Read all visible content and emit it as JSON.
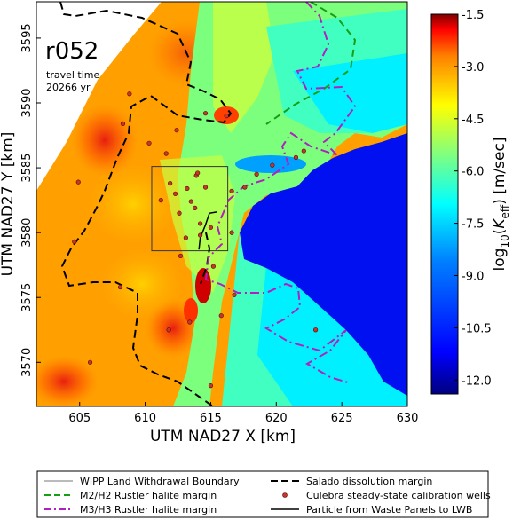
{
  "chart_data": {
    "type": "heatmap",
    "title": "r052",
    "subtitle_line1": "travel time",
    "subtitle_line2": "20266 yr",
    "xlabel": "UTM NAD27 X [km]",
    "ylabel": "UTM NAD27 Y [km]",
    "xlim": [
      601.7,
      630.0
    ],
    "ylim": [
      3566.6,
      3597.8
    ],
    "x_ticks": [
      605,
      610,
      615,
      620,
      625,
      630
    ],
    "y_ticks": [
      3570,
      3575,
      3580,
      3585,
      3590,
      3595
    ],
    "colorbar": {
      "label_prefix": "log",
      "label_sub": "10",
      "label_var": "K",
      "label_var_sub": "eff",
      "label_units": "[m/sec]",
      "range": [
        -12.4,
        -1.5
      ],
      "ticks": [
        "-1.5",
        "-3.0",
        "-4.5",
        "-6.0",
        "-7.5",
        "-9.0",
        "-10.5",
        "-12.0"
      ],
      "tick_values": [
        -1.5,
        -3.0,
        -4.5,
        -6.0,
        -7.5,
        -9.0,
        -10.5,
        -12.0
      ],
      "colors": [
        "#800000",
        "#ff0000",
        "#ff8000",
        "#ffff00",
        "#80ff80",
        "#00ffff",
        "#0080ff",
        "#0000ff",
        "#000080"
      ]
    },
    "wipp_box": {
      "x": [
        610.5,
        616.3
      ],
      "y": [
        3578.6,
        3585.1
      ]
    },
    "particle_path": [
      [
        615.5,
        3581.6
      ],
      [
        614.9,
        3581.5
      ],
      [
        614.6,
        3580.6
      ],
      [
        614.2,
        3579.6
      ],
      [
        614.1,
        3578.7
      ]
    ],
    "wells": [
      [
        608.8,
        3590.7
      ],
      [
        608.3,
        3588.4
      ],
      [
        610.3,
        3586.9
      ],
      [
        612.4,
        3587.9
      ],
      [
        614.6,
        3589.2
      ],
      [
        616.2,
        3589.0
      ],
      [
        604.6,
        3579.3
      ],
      [
        604.9,
        3583.9
      ],
      [
        611.6,
        3586.1
      ],
      [
        611.9,
        3583.8
      ],
      [
        612.3,
        3583.0
      ],
      [
        613.2,
        3583.4
      ],
      [
        613.5,
        3582.4
      ],
      [
        613.9,
        3584.4
      ],
      [
        612.6,
        3581.5
      ],
      [
        613.8,
        3581.9
      ],
      [
        614.2,
        3580.7
      ],
      [
        613.1,
        3579.6
      ],
      [
        611.2,
        3582.5
      ],
      [
        615.0,
        3580.4
      ],
      [
        614.6,
        3583.5
      ],
      [
        616.6,
        3583.2
      ],
      [
        617.6,
        3583.5
      ],
      [
        618.5,
        3584.5
      ],
      [
        619.7,
        3585.2
      ],
      [
        621.5,
        3585.8
      ],
      [
        622.1,
        3586.3
      ],
      [
        615.2,
        3577.4
      ],
      [
        616.8,
        3575.2
      ],
      [
        612.7,
        3578.2
      ],
      [
        614.2,
        3579.8
      ],
      [
        615.8,
        3573.6
      ],
      [
        613.4,
        3573.1
      ],
      [
        611.8,
        3572.5
      ],
      [
        608.1,
        3575.8
      ],
      [
        605.8,
        3570.0
      ],
      [
        623.0,
        3572.5
      ],
      [
        614.0,
        3584.6
      ],
      [
        616.6,
        3580.0
      ],
      [
        615.0,
        3568.2
      ]
    ],
    "legend": [
      {
        "label": "WIPP Land Withdrawal Boundary",
        "style": "thin-gray-line"
      },
      {
        "label": "Salado dissolution margin",
        "style": "black-dashed"
      },
      {
        "label": "M2/H2 Rustler halite margin",
        "style": "green-dashed"
      },
      {
        "label": "Culebra steady-state calibration wells",
        "style": "red-dot"
      },
      {
        "label": "M3/H3 Rustler halite margin",
        "style": "magenta-dashdot"
      },
      {
        "label": "Particle from Waste Panels to LWB",
        "style": "black-solid"
      }
    ]
  }
}
